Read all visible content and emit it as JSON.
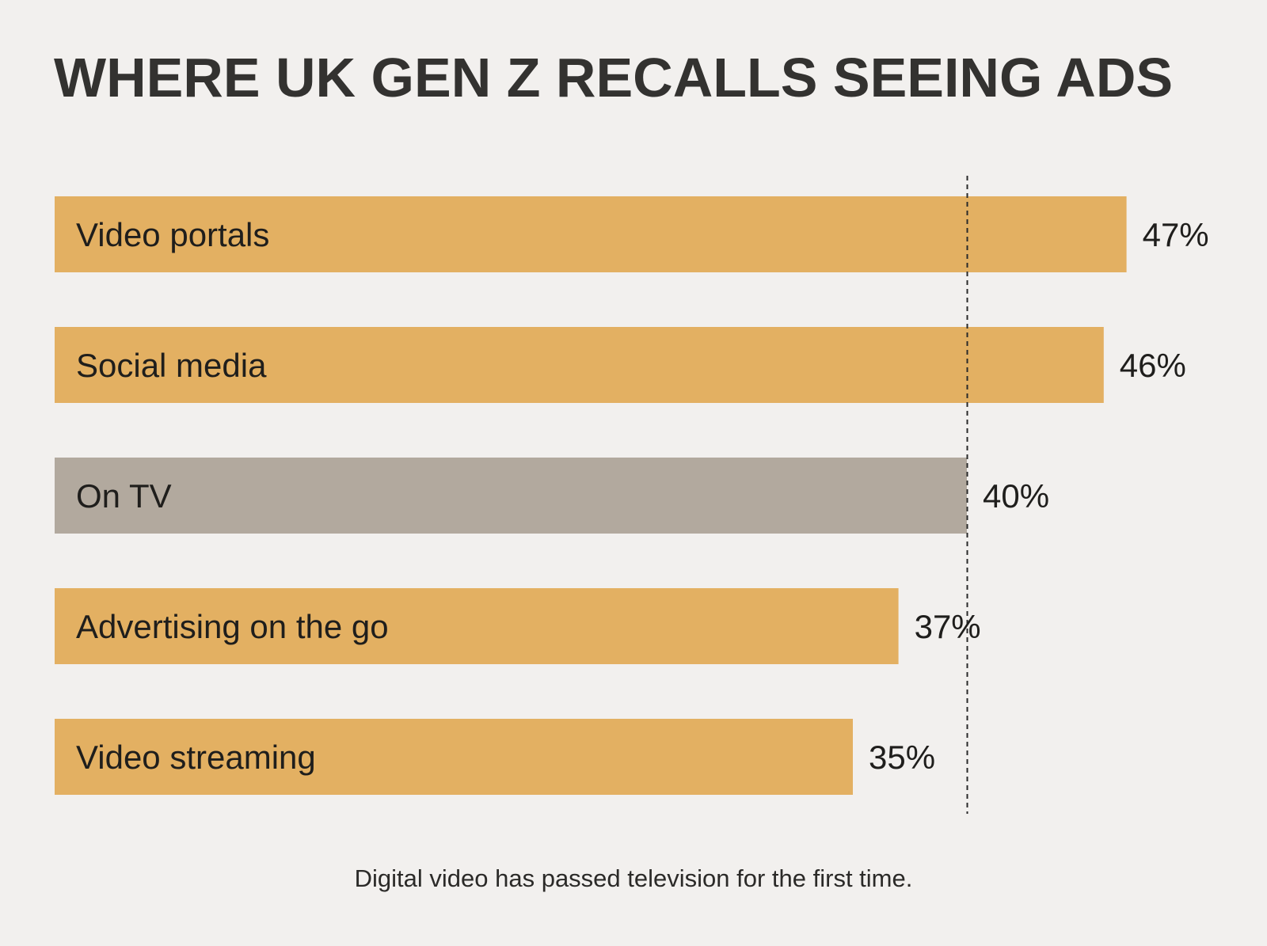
{
  "chart_data": {
    "type": "bar",
    "orientation": "horizontal",
    "title": "WHERE UK GEN Z RECALLS SEEING ADS",
    "categories": [
      "Video portals",
      "Social media",
      "On TV",
      "Advertising on the go",
      "Video streaming"
    ],
    "values": [
      47,
      46,
      40,
      37,
      35
    ],
    "value_labels": [
      "47%",
      "46%",
      "40%",
      "37%",
      "35%"
    ],
    "unit": "%",
    "highlight_category": "On TV",
    "reference_line": 40,
    "colors": {
      "bar": "#e3b062",
      "highlight_bar": "#b2a99e",
      "reference_line": "#2a2a2a",
      "background": "#f2f0ee",
      "text": "#1f1e1c"
    },
    "caption": "Digital video has passed television for the first time."
  }
}
